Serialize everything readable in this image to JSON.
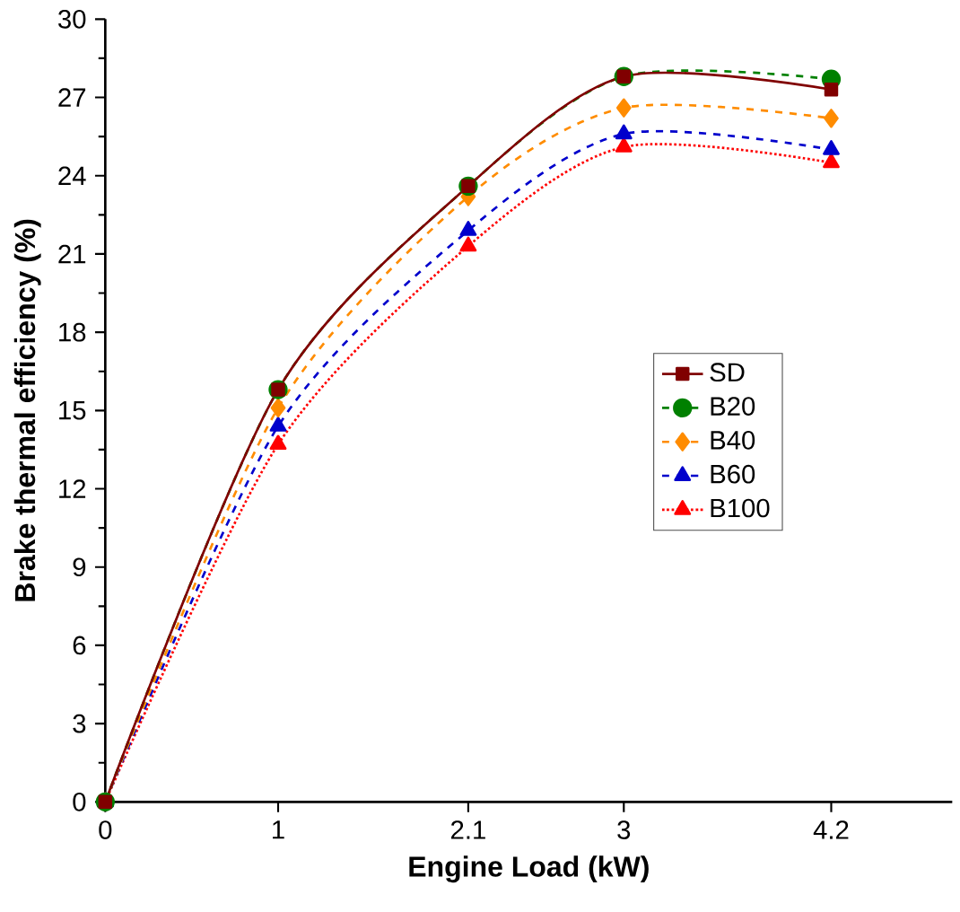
{
  "chart_data": {
    "type": "line",
    "xlabel": "Engine Load (kW)",
    "ylabel": "Brake thermal efficiency (%)",
    "x": [
      0,
      1,
      2.1,
      3,
      4.2
    ],
    "series": [
      {
        "name": "SD",
        "color": "#800000",
        "values": [
          0,
          15.8,
          23.6,
          27.8,
          27.3
        ],
        "marker": "square",
        "line_style": "solid"
      },
      {
        "name": "B20",
        "color": "#008000",
        "values": [
          0,
          15.8,
          23.6,
          27.8,
          27.7
        ],
        "marker": "circle",
        "line_style": "dashed"
      },
      {
        "name": "B40",
        "color": "#ff8c00",
        "values": [
          0,
          15.1,
          23.2,
          26.6,
          26.2
        ],
        "marker": "diamond",
        "line_style": "dashed"
      },
      {
        "name": "B60",
        "color": "#0000cc",
        "values": [
          0,
          14.4,
          21.9,
          25.6,
          25.0
        ],
        "marker": "triangle",
        "line_style": "dashed"
      },
      {
        "name": "B100",
        "color": "#ff0000",
        "values": [
          0,
          13.7,
          21.3,
          25.1,
          24.5
        ],
        "marker": "triangle",
        "line_style": "dotted"
      }
    ],
    "xlim": [
      0,
      4.9
    ],
    "xticks": [
      0,
      1,
      2.1,
      3,
      4.2
    ],
    "ylim": [
      0,
      30
    ],
    "yticks": [
      0,
      3,
      6,
      9,
      12,
      15,
      18,
      21,
      24,
      27,
      30
    ],
    "grid": false,
    "legend": "right"
  }
}
